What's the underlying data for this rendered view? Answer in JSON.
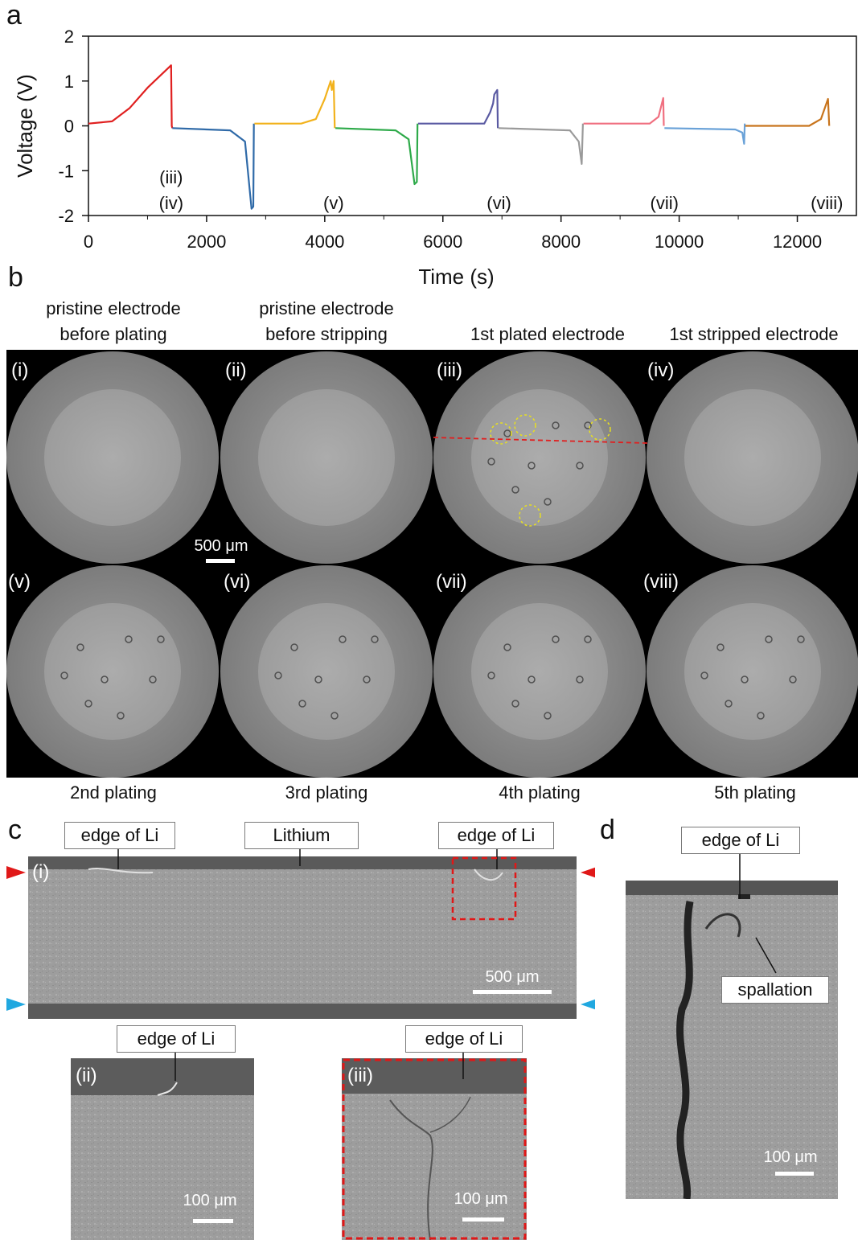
{
  "panel_letters": {
    "a": "a",
    "b": "b",
    "c": "c",
    "d": "d"
  },
  "chart_data": {
    "type": "line",
    "xlabel": "Time (s)",
    "ylabel": "Voltage (V)",
    "xlim": [
      0,
      13000
    ],
    "ylim": [
      -2,
      2
    ],
    "x_ticks": [
      "0",
      "2000",
      "4000",
      "6000",
      "8000",
      "10000",
      "12000"
    ],
    "y_ticks": [
      "2",
      "1",
      "0",
      "-1",
      "-2"
    ],
    "series": [
      {
        "color": "#e02020",
        "x": [
          0,
          400,
          700,
          1000,
          1400,
          1410,
          1420
        ],
        "y": [
          0.05,
          0.1,
          0.4,
          0.85,
          1.35,
          0.0,
          -0.05
        ]
      },
      {
        "color": "#2f6aa8",
        "x": [
          1420,
          2400,
          2650,
          2760,
          2790,
          2800
        ],
        "y": [
          -0.05,
          -0.1,
          -0.35,
          -1.85,
          -1.8,
          0.05
        ]
      },
      {
        "color": "#f2b21c",
        "x": [
          2810,
          3600,
          3850,
          4000,
          4100,
          4120,
          4150,
          4170
        ],
        "y": [
          0.05,
          0.05,
          0.15,
          0.6,
          1.0,
          0.8,
          1.0,
          -0.05
        ]
      },
      {
        "color": "#2eaa4a",
        "x": [
          4180,
          5200,
          5420,
          5520,
          5560,
          5570
        ],
        "y": [
          -0.05,
          -0.1,
          -0.3,
          -1.3,
          -1.25,
          0.05
        ]
      },
      {
        "color": "#5a5aa2",
        "x": [
          5580,
          6700,
          6800,
          6850,
          6870,
          6920,
          6930
        ],
        "y": [
          0.05,
          0.05,
          0.3,
          0.5,
          0.7,
          0.8,
          -0.05
        ]
      },
      {
        "color": "#9a9a9a",
        "x": [
          6940,
          8150,
          8300,
          8350,
          8370
        ],
        "y": [
          -0.05,
          -0.1,
          -0.35,
          -0.85,
          0.05
        ]
      },
      {
        "color": "#f07080",
        "x": [
          8380,
          9500,
          9650,
          9730,
          9740
        ],
        "y": [
          0.05,
          0.05,
          0.2,
          0.62,
          0.0
        ]
      },
      {
        "color": "#6aa2d8",
        "x": [
          9750,
          10950,
          11070,
          11100,
          11110
        ],
        "y": [
          -0.05,
          -0.08,
          -0.15,
          -0.4,
          0.05
        ]
      },
      {
        "color": "#c8741c",
        "x": [
          11120,
          12200,
          12400,
          12520,
          12540
        ],
        "y": [
          0.0,
          0.0,
          0.15,
          0.6,
          0.0
        ]
      }
    ],
    "annotations": [
      {
        "text": "(iii)",
        "x": 1400,
        "row": 1
      },
      {
        "text": "(iv)",
        "x": 1400,
        "row": 2
      },
      {
        "text": "(v)",
        "x": 4150,
        "row": 2
      },
      {
        "text": "(vi)",
        "x": 6950,
        "row": 2
      },
      {
        "text": "(vii)",
        "x": 9750,
        "row": 2
      },
      {
        "text": "(viii)",
        "x": 12500,
        "row": 2
      }
    ]
  },
  "panel_b": {
    "headers": [
      {
        "line1": "pristine electrode",
        "line2": "before plating"
      },
      {
        "line1": "pristine electrode",
        "line2": "before stripping"
      },
      {
        "line1": "",
        "line2": "1st plated electrode"
      },
      {
        "line1": "",
        "line2": "1st stripped electrode"
      }
    ],
    "top_labels": [
      "(i)",
      "(ii)",
      "(iii)",
      "(iv)"
    ],
    "bottom_labels": [
      "(v)",
      "(vi)",
      "(vii)",
      "(viii)"
    ],
    "footers": [
      "2nd plating",
      "3rd plating",
      "4th plating",
      "5th plating"
    ],
    "scale_bar": "500 μm",
    "colors": {
      "background": "#000000",
      "disk": "#8a8a8a",
      "inner": "#a3a3a3",
      "circles": "#e8e020",
      "section_line": "#e02020"
    }
  },
  "panel_c": {
    "main_label": "(i)",
    "callouts": {
      "left": "edge of Li",
      "middle": "Lithium",
      "right": "edge of Li"
    },
    "scale_bar": "500 μm",
    "sub_ii": {
      "label": "(ii)",
      "callout": "edge of Li",
      "scale_bar": "100 μm"
    },
    "sub_iii": {
      "label": "(iii)",
      "callout": "edge of Li",
      "scale_bar": "100 μm"
    },
    "marker_colors": {
      "top": "#e01818",
      "bottom": "#20a8e0",
      "box": "#e01818"
    }
  },
  "panel_d": {
    "callout_top": "edge of Li",
    "callout_mid": "spallation",
    "scale_bar": "100 μm"
  }
}
